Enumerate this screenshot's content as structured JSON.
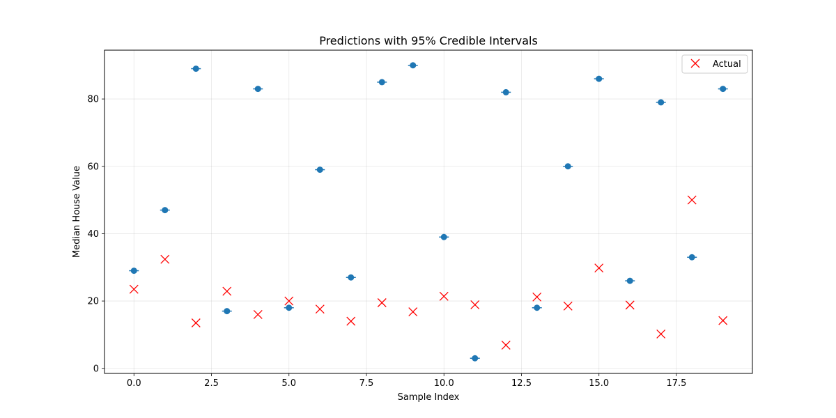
{
  "chart_data": {
    "type": "scatter",
    "title": "Predictions with 95% Credible Intervals",
    "xlabel": "Sample Index",
    "ylabel": "Median House Value",
    "xlim": [
      -0.95,
      19.95
    ],
    "ylim": [
      -1.5,
      94.5
    ],
    "xticks": [
      0,
      2.5,
      5,
      7.5,
      10,
      12.5,
      15,
      17.5
    ],
    "xtick_labels": [
      "0.0",
      "2.5",
      "5.0",
      "7.5",
      "10.0",
      "12.5",
      "15.0",
      "17.5"
    ],
    "yticks": [
      0,
      20,
      40,
      60,
      80
    ],
    "ytick_labels": [
      "0",
      "20",
      "40",
      "60",
      "80"
    ],
    "grid": true,
    "legend_position": "top-right",
    "series": [
      {
        "marker": "circle",
        "color": "#1f77b4",
        "x": [
          0,
          1,
          2,
          3,
          4,
          5,
          6,
          7,
          8,
          9,
          10,
          11,
          12,
          13,
          14,
          15,
          16,
          17,
          18,
          19
        ],
        "y": [
          29,
          47,
          89,
          17,
          83,
          18,
          59,
          27,
          85,
          90,
          39,
          3,
          82,
          18,
          60,
          86,
          26,
          79,
          33,
          83
        ],
        "interval": [
          0.8,
          0.8,
          0.8,
          0.8,
          0.8,
          0.8,
          0.8,
          0.8,
          0.8,
          0.8,
          0.8,
          0.8,
          0.8,
          0.8,
          0.8,
          0.8,
          0.8,
          0.8,
          0.8,
          0.8
        ]
      },
      {
        "name": "Actual",
        "marker": "x",
        "color": "#ff0000",
        "x": [
          0,
          1,
          2,
          3,
          4,
          5,
          6,
          7,
          8,
          9,
          10,
          11,
          12,
          13,
          14,
          15,
          16,
          17,
          18,
          19
        ],
        "y": [
          23.5,
          32.4,
          13.5,
          22.9,
          16.0,
          20.0,
          17.6,
          14.0,
          19.5,
          16.8,
          21.4,
          18.9,
          6.9,
          21.2,
          18.5,
          29.8,
          18.8,
          10.2,
          50.0,
          14.2
        ]
      }
    ]
  }
}
